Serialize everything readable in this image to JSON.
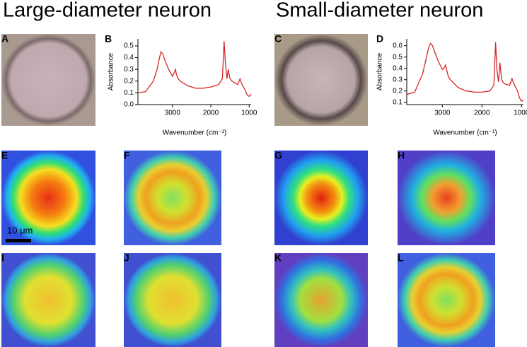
{
  "headings": [
    "Large-diameter neuron",
    "Small-diameter neuron"
  ],
  "panel_labels": [
    "A",
    "B",
    "C",
    "D",
    "E",
    "F",
    "G",
    "H",
    "I",
    "J",
    "K",
    "L"
  ],
  "scale_bar": "10 μm",
  "chart_data": [
    {
      "type": "line",
      "x_label": "Wavenumber (cm⁻¹)",
      "y_label": "Absorbance",
      "color": "#d62728",
      "x": [
        3900,
        3700,
        3500,
        3400,
        3350,
        3300,
        3250,
        3200,
        3100,
        3000,
        2960,
        2920,
        2900,
        2850,
        2800,
        2600,
        2400,
        2350,
        2200,
        2000,
        1800,
        1700,
        1680,
        1655,
        1620,
        1580,
        1545,
        1500,
        1450,
        1400,
        1300,
        1240,
        1200,
        1100,
        1050,
        1000,
        950
      ],
      "values": [
        0.1,
        0.11,
        0.2,
        0.3,
        0.38,
        0.45,
        0.43,
        0.38,
        0.3,
        0.24,
        0.27,
        0.3,
        0.26,
        0.22,
        0.2,
        0.16,
        0.14,
        0.14,
        0.14,
        0.15,
        0.17,
        0.22,
        0.35,
        0.54,
        0.35,
        0.22,
        0.3,
        0.22,
        0.2,
        0.19,
        0.17,
        0.22,
        0.18,
        0.12,
        0.08,
        0.07,
        0.09
      ],
      "xlim": [
        3900,
        950
      ],
      "xticks": [
        3000,
        2000,
        1000
      ],
      "ylim": [
        0,
        0.56
      ],
      "yticks": [
        {
          "value": 0,
          "label": "0.0"
        },
        0.1,
        0.2,
        0.3,
        0.4,
        0.5
      ]
    },
    {
      "type": "line",
      "x_label": "Wavenumber (cm⁻¹)",
      "y_label": "Absorbance",
      "color": "#d62728",
      "x": [
        3900,
        3700,
        3500,
        3400,
        3350,
        3300,
        3250,
        3200,
        3100,
        3000,
        2960,
        2920,
        2900,
        2850,
        2800,
        2600,
        2400,
        2350,
        2200,
        2000,
        1800,
        1700,
        1680,
        1655,
        1620,
        1580,
        1545,
        1500,
        1450,
        1400,
        1300,
        1240,
        1200,
        1100,
        1050,
        1000,
        950
      ],
      "values": [
        0.17,
        0.19,
        0.35,
        0.5,
        0.58,
        0.62,
        0.6,
        0.55,
        0.46,
        0.39,
        0.4,
        0.43,
        0.4,
        0.33,
        0.3,
        0.23,
        0.2,
        0.2,
        0.19,
        0.19,
        0.2,
        0.25,
        0.4,
        0.63,
        0.38,
        0.28,
        0.45,
        0.3,
        0.27,
        0.26,
        0.25,
        0.31,
        0.27,
        0.2,
        0.14,
        0.11,
        0.12
      ],
      "xlim": [
        3900,
        950
      ],
      "xticks": [
        3000,
        2000,
        1000
      ],
      "ylim": [
        0.08,
        0.66
      ],
      "yticks": [
        0.1,
        0.2,
        0.3,
        0.4,
        0.5,
        0.6
      ]
    }
  ]
}
